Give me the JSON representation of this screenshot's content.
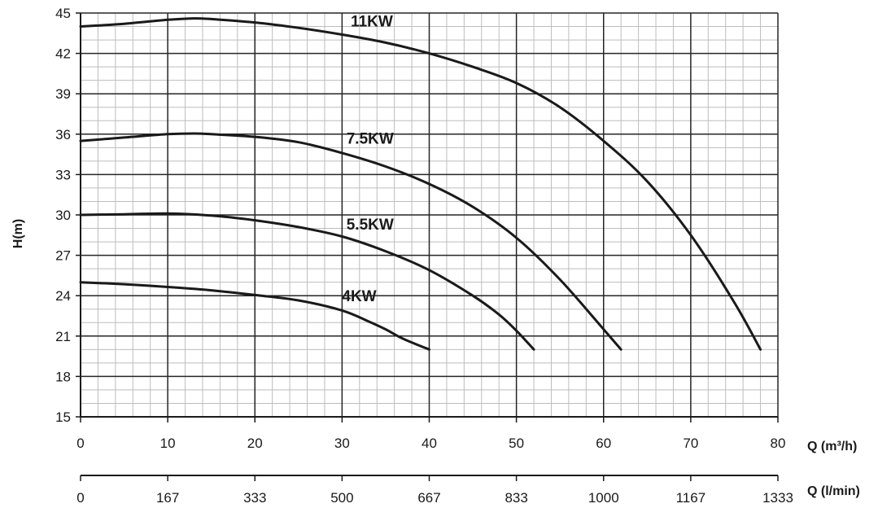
{
  "chart_data": {
    "type": "line",
    "xlabel": "Q (m³/h)",
    "x2label": "Q (l/min)",
    "ylabel": "H(m)",
    "xlim": [
      0,
      80
    ],
    "ylim": [
      15,
      45
    ],
    "x_ticks": [
      "0",
      "10",
      "20",
      "30",
      "40",
      "50",
      "60",
      "70",
      "80"
    ],
    "x2_ticks": [
      "0",
      "167",
      "333",
      "500",
      "667",
      "833",
      "1000",
      "1167",
      "1333"
    ],
    "y_ticks": [
      "15",
      "18",
      "21",
      "24",
      "27",
      "30",
      "33",
      "36",
      "39",
      "42",
      "45"
    ],
    "grid": true,
    "series": [
      {
        "name": "4KW",
        "x": [
          0,
          5,
          10,
          15,
          20,
          25,
          30,
          33,
          35,
          37,
          40
        ],
        "y": [
          25.0,
          24.85,
          24.65,
          24.4,
          24.05,
          23.65,
          22.9,
          22.1,
          21.5,
          20.8,
          20.0
        ]
      },
      {
        "name": "5.5KW",
        "x": [
          0,
          5,
          10,
          15,
          20,
          25,
          30,
          35,
          40,
          45,
          48,
          50,
          52
        ],
        "y": [
          30.0,
          30.05,
          30.1,
          29.95,
          29.6,
          29.1,
          28.4,
          27.3,
          25.9,
          24.0,
          22.6,
          21.4,
          20.0
        ]
      },
      {
        "name": "7.5KW",
        "x": [
          0,
          5,
          10,
          13,
          15,
          20,
          25,
          30,
          35,
          40,
          45,
          50,
          55,
          60,
          62
        ],
        "y": [
          35.5,
          35.75,
          36.0,
          36.05,
          36.0,
          35.8,
          35.4,
          34.6,
          33.6,
          32.3,
          30.6,
          28.3,
          25.2,
          21.5,
          20.0
        ]
      },
      {
        "name": "11KW",
        "x": [
          0,
          5,
          10,
          13,
          15,
          20,
          25,
          30,
          35,
          40,
          45,
          50,
          55,
          60,
          65,
          70,
          75,
          78
        ],
        "y": [
          44.0,
          44.2,
          44.5,
          44.6,
          44.55,
          44.3,
          43.9,
          43.4,
          42.8,
          42.0,
          41.0,
          39.8,
          38.0,
          35.5,
          32.5,
          28.5,
          23.5,
          20.0
        ]
      }
    ],
    "annotations": [
      {
        "text": "4KW",
        "x": 30,
        "y": 23.6
      },
      {
        "text": "5.5KW",
        "x": 30.5,
        "y": 28.9
      },
      {
        "text": "7.5KW",
        "x": 30.5,
        "y": 35.3
      },
      {
        "text": "11KW",
        "x": 31,
        "y": 44.0
      }
    ]
  }
}
